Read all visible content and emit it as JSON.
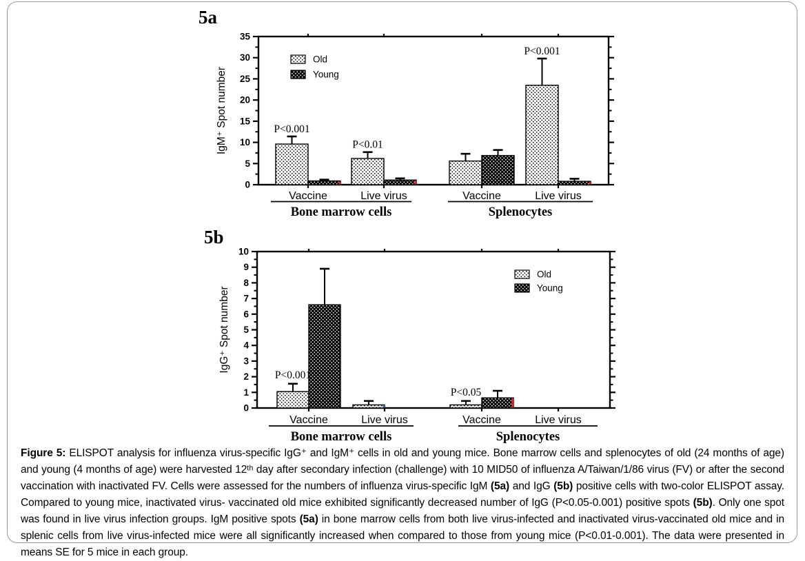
{
  "figure": {
    "panel_a_label": "5a",
    "panel_b_label": "5b"
  },
  "colors": {
    "axis_and_text": "#000000",
    "old_bar_bg": "#ffffff",
    "old_bar_dot": "#000000",
    "young_bar_bg": "#000000",
    "young_bar_dot": "#ffffff",
    "red_edge_mark": "#ee2222",
    "blue_edge_mark": "#4a5bd0",
    "frame_border": "#96999d"
  },
  "chart_data": [
    {
      "id": "5a",
      "type": "bar",
      "title": "5a",
      "ylabel": "IgM⁺ Spot number",
      "xlabel": "",
      "ylim": [
        0,
        35
      ],
      "yticks": [
        0,
        5,
        10,
        15,
        20,
        25,
        30,
        35
      ],
      "yminor_step": 2.5,
      "grid": false,
      "legend_position": "top-left",
      "categories": [
        "Vaccine",
        "Live virus",
        "Vaccine",
        "Live virus"
      ],
      "groups": [
        {
          "label": "Bone marrow cells",
          "categories": [
            0,
            1
          ]
        },
        {
          "label": "Splenocytes",
          "categories": [
            2,
            3
          ]
        }
      ],
      "series": [
        {
          "name": "Old",
          "pattern": "light-stipple",
          "values": [
            9.6,
            6.2,
            5.6,
            23.5
          ],
          "errors": [
            1.8,
            1.5,
            1.7,
            6.3
          ],
          "edge_marks": []
        },
        {
          "name": "Young",
          "pattern": "dark-stipple",
          "values": [
            0.9,
            1.1,
            6.9,
            0.8
          ],
          "errors": [
            0.3,
            0.4,
            1.3,
            0.6
          ],
          "edge_marks": [
            {
              "category": 0,
              "color": "#ee2222"
            },
            {
              "category": 1,
              "color": "#ee2222"
            },
            {
              "category": 3,
              "color": "#ee2222"
            }
          ]
        }
      ],
      "annotations": [
        {
          "text": "P<0.001",
          "category": 0
        },
        {
          "text": "P<0.01",
          "category": 1
        },
        {
          "text": "P<0.001",
          "category": 3
        }
      ]
    },
    {
      "id": "5b",
      "type": "bar",
      "title": "5b",
      "ylabel": "IgG⁺ Spot number",
      "xlabel": "",
      "ylim": [
        0,
        10
      ],
      "yticks": [
        0,
        1,
        2,
        3,
        4,
        5,
        6,
        7,
        8,
        9,
        10
      ],
      "yminor_step": 0.5,
      "grid": false,
      "legend_position": "top-right",
      "categories": [
        "Vaccine",
        "Live virus",
        "Vaccine",
        "Live virus"
      ],
      "groups": [
        {
          "label": "Bone marrow cells",
          "categories": [
            0,
            1
          ]
        },
        {
          "label": "Splenocytes",
          "categories": [
            2,
            3
          ]
        }
      ],
      "series": [
        {
          "name": "Old",
          "pattern": "light-stipple",
          "values": [
            1.05,
            0.2,
            0.2,
            0
          ],
          "errors": [
            0.5,
            0.25,
            0.25,
            0
          ],
          "edge_marks": [
            {
              "category": 1,
              "color": "#4a5bd0"
            }
          ]
        },
        {
          "name": "Young",
          "pattern": "dark-stipple",
          "values": [
            6.6,
            0,
            0.65,
            0
          ],
          "errors": [
            2.3,
            0,
            0.45,
            0
          ],
          "edge_marks": [
            {
              "category": 2,
              "color": "#ee2222"
            }
          ]
        }
      ],
      "annotations": [
        {
          "text": "P<0.001",
          "category": 0
        },
        {
          "text": "P<0.05",
          "category": 2
        }
      ]
    }
  ],
  "caption": {
    "segments": [
      {
        "bold": true,
        "text": "Figure 5:"
      },
      {
        "bold": false,
        "text": " ELISPOT analysis for influenza virus-specific IgG⁺ and IgM⁺ cells in old and young mice. Bone marrow cells and splenocytes of old (24 months of age) and young (4 months of age) were harvested 12ᵗʰ day after secondary infection (challenge) with 10 MID50 of influenza A/Taiwan/1/86 virus (FV) or after the second vaccination with inactivated FV. Cells were assessed for the numbers of influenza virus-specific IgM "
      },
      {
        "bold": true,
        "text": "(5a)"
      },
      {
        "bold": false,
        "text": " and IgG "
      },
      {
        "bold": true,
        "text": "(5b)"
      },
      {
        "bold": false,
        "text": " positive cells with two-color ELISPOT assay. Compared to young mice, inactivated virus- vaccinated old mice exhibited significantly decreased number of IgG (P<0.05-0.001) positive spots "
      },
      {
        "bold": true,
        "text": "(5b)"
      },
      {
        "bold": false,
        "text": ". Only one spot was found in live virus infection groups. IgM positive spots "
      },
      {
        "bold": true,
        "text": "(5a)"
      },
      {
        "bold": false,
        "text": " in bone marrow cells from both live virus-infected and inactivated virus-vaccinated old mice and in splenic cells from live virus-infected mice were all significantly increased when compared to those from young mice (P<0.01-0.001). The data were presented in means  SE for 5 mice in each group."
      }
    ]
  }
}
